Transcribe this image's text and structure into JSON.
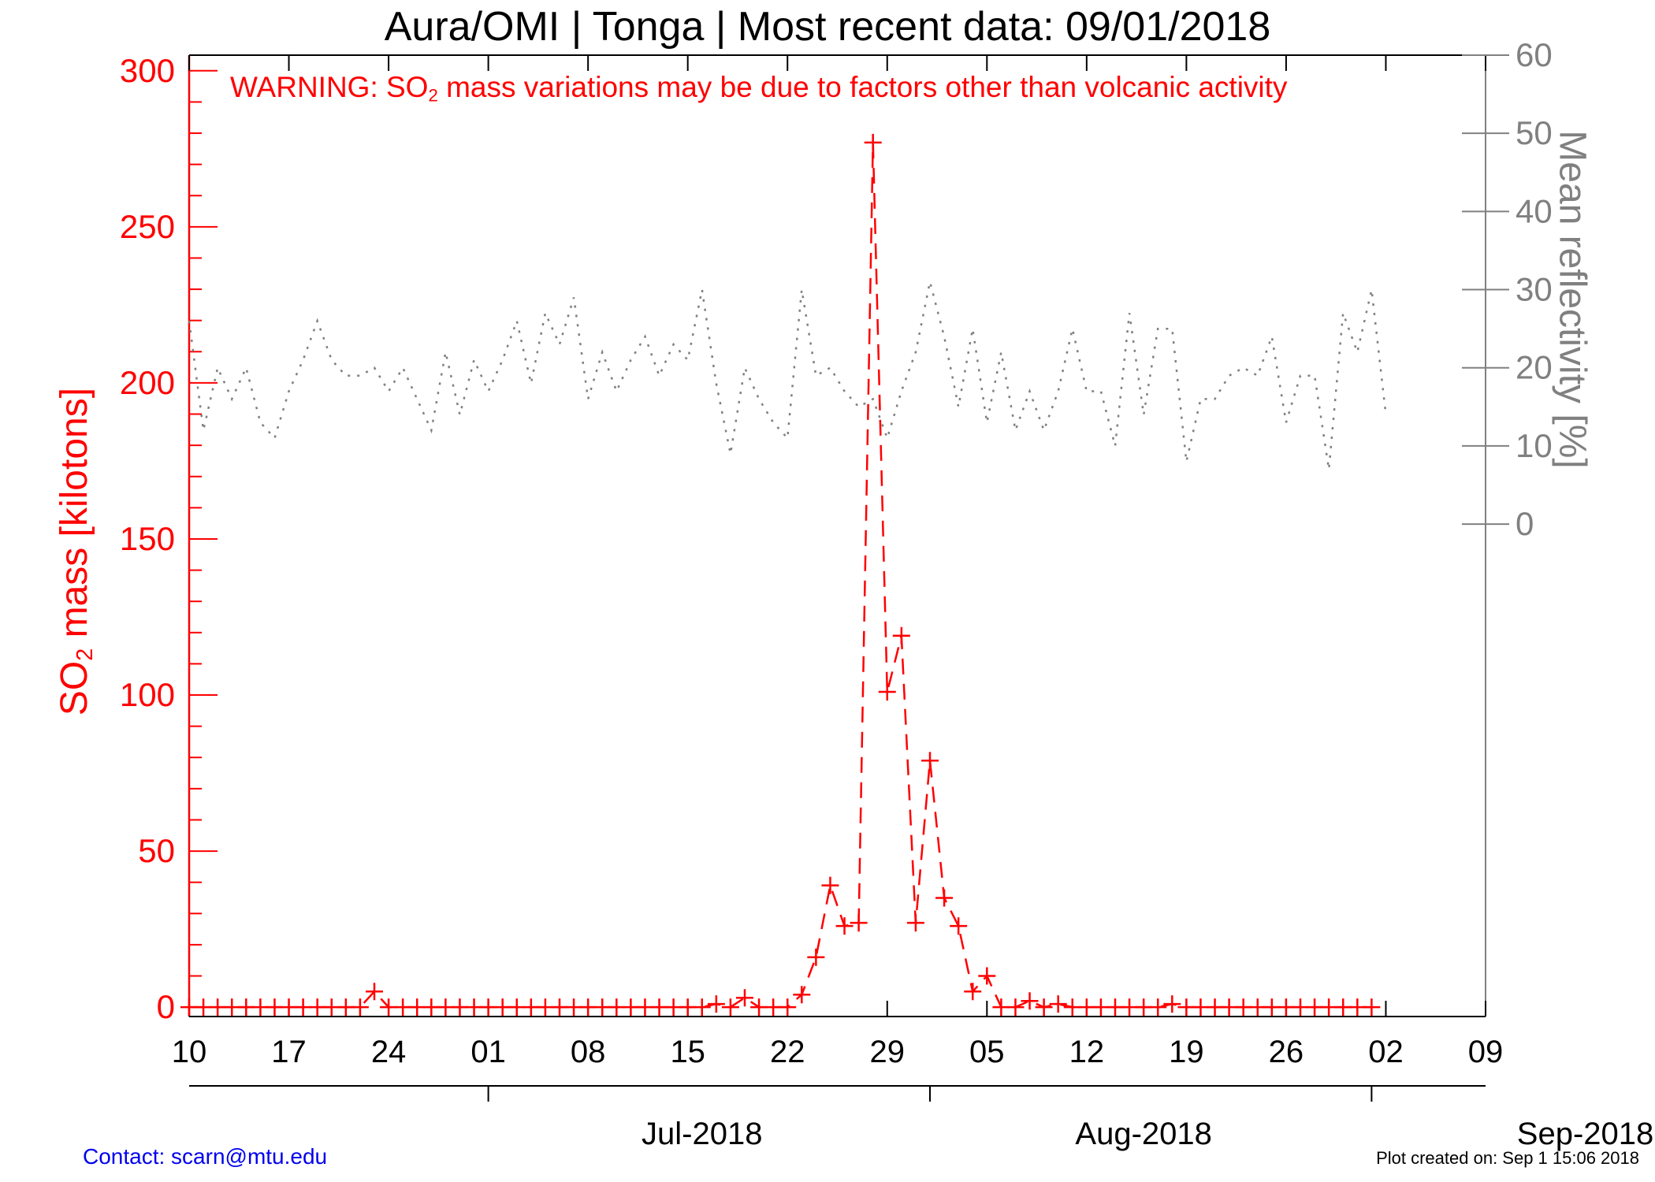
{
  "chart_data": {
    "type": "line",
    "title": "Aura/OMI | Tonga | Most recent data: 09/01/2018",
    "annotation": {
      "prefix": "WARNING: SO",
      "sub": "2",
      "suffix": " mass variations may be due to factors other than volcanic activity"
    },
    "ylabel_left": {
      "prefix": "SO",
      "sub": "2",
      "suffix": " mass [kilotons]"
    },
    "ylabel_right": "Mean reflectivity [%]",
    "ylim_left": [
      -3,
      305
    ],
    "yticks_left": [
      0,
      50,
      100,
      150,
      200,
      250,
      300
    ],
    "ylim_right": [
      -63,
      60
    ],
    "yticks_right": [
      0,
      10,
      20,
      30,
      40,
      50,
      60
    ],
    "xlim": [
      "2018-06-10",
      "2018-09-09"
    ],
    "xtick_labels": [
      "10",
      "17",
      "24",
      "01",
      "08",
      "15",
      "22",
      "29",
      "05",
      "12",
      "19",
      "26",
      "02",
      "09"
    ],
    "month_labels": [
      "Jul-2018",
      "Aug-2018",
      "Sep-2018"
    ],
    "colors": {
      "so2": "#ff0000",
      "reflectivity": "#808080",
      "axis": "#000000",
      "right_axis": "#808080"
    },
    "series": [
      {
        "name": "SO2 mass",
        "axis": "left",
        "style": "dashed",
        "marker": "plus",
        "start": "2018-06-10",
        "values": [
          0,
          0,
          0,
          0,
          0,
          0,
          0,
          0,
          0,
          0,
          0,
          0,
          0,
          5,
          0,
          0,
          0,
          0,
          0,
          0,
          0,
          0,
          0,
          0,
          0,
          0,
          0,
          0,
          0,
          0,
          0,
          0,
          0,
          0,
          0,
          0,
          0,
          1,
          0,
          3,
          0,
          0,
          0,
          4,
          16,
          39,
          26,
          27,
          277,
          101,
          119,
          27,
          79,
          35,
          26,
          5,
          10,
          0,
          0,
          2,
          0,
          1,
          0,
          0,
          0,
          0,
          0,
          0,
          0,
          1,
          0,
          0,
          0,
          0,
          0,
          0,
          0,
          0,
          0,
          0,
          0,
          0,
          0,
          0
        ]
      },
      {
        "name": "Mean reflectivity",
        "axis": "right",
        "style": "dotted",
        "marker": "none",
        "start": "2018-06-10",
        "values": [
          26,
          12,
          20,
          16,
          20,
          13,
          11,
          17,
          21,
          26,
          21,
          19,
          19,
          20,
          17,
          20,
          16,
          12,
          22,
          14,
          21,
          17,
          21,
          26,
          18,
          27,
          23,
          29,
          16,
          22,
          17,
          21,
          24,
          19,
          23,
          21,
          30,
          18,
          9,
          20,
          16,
          13,
          11,
          30,
          19,
          20,
          17,
          15,
          16,
          11,
          17,
          22,
          31,
          24,
          15,
          25,
          13,
          22,
          12,
          17,
          12,
          17,
          25,
          17,
          17,
          10,
          27,
          14,
          25,
          25,
          8,
          16,
          16,
          19,
          20,
          19,
          24,
          13,
          19,
          19,
          7,
          27,
          22,
          30,
          14
        ]
      }
    ]
  },
  "footer": {
    "contact": "Contact: scarn@mtu.edu",
    "created": "Plot created on: Sep  1 15:06 2018"
  }
}
